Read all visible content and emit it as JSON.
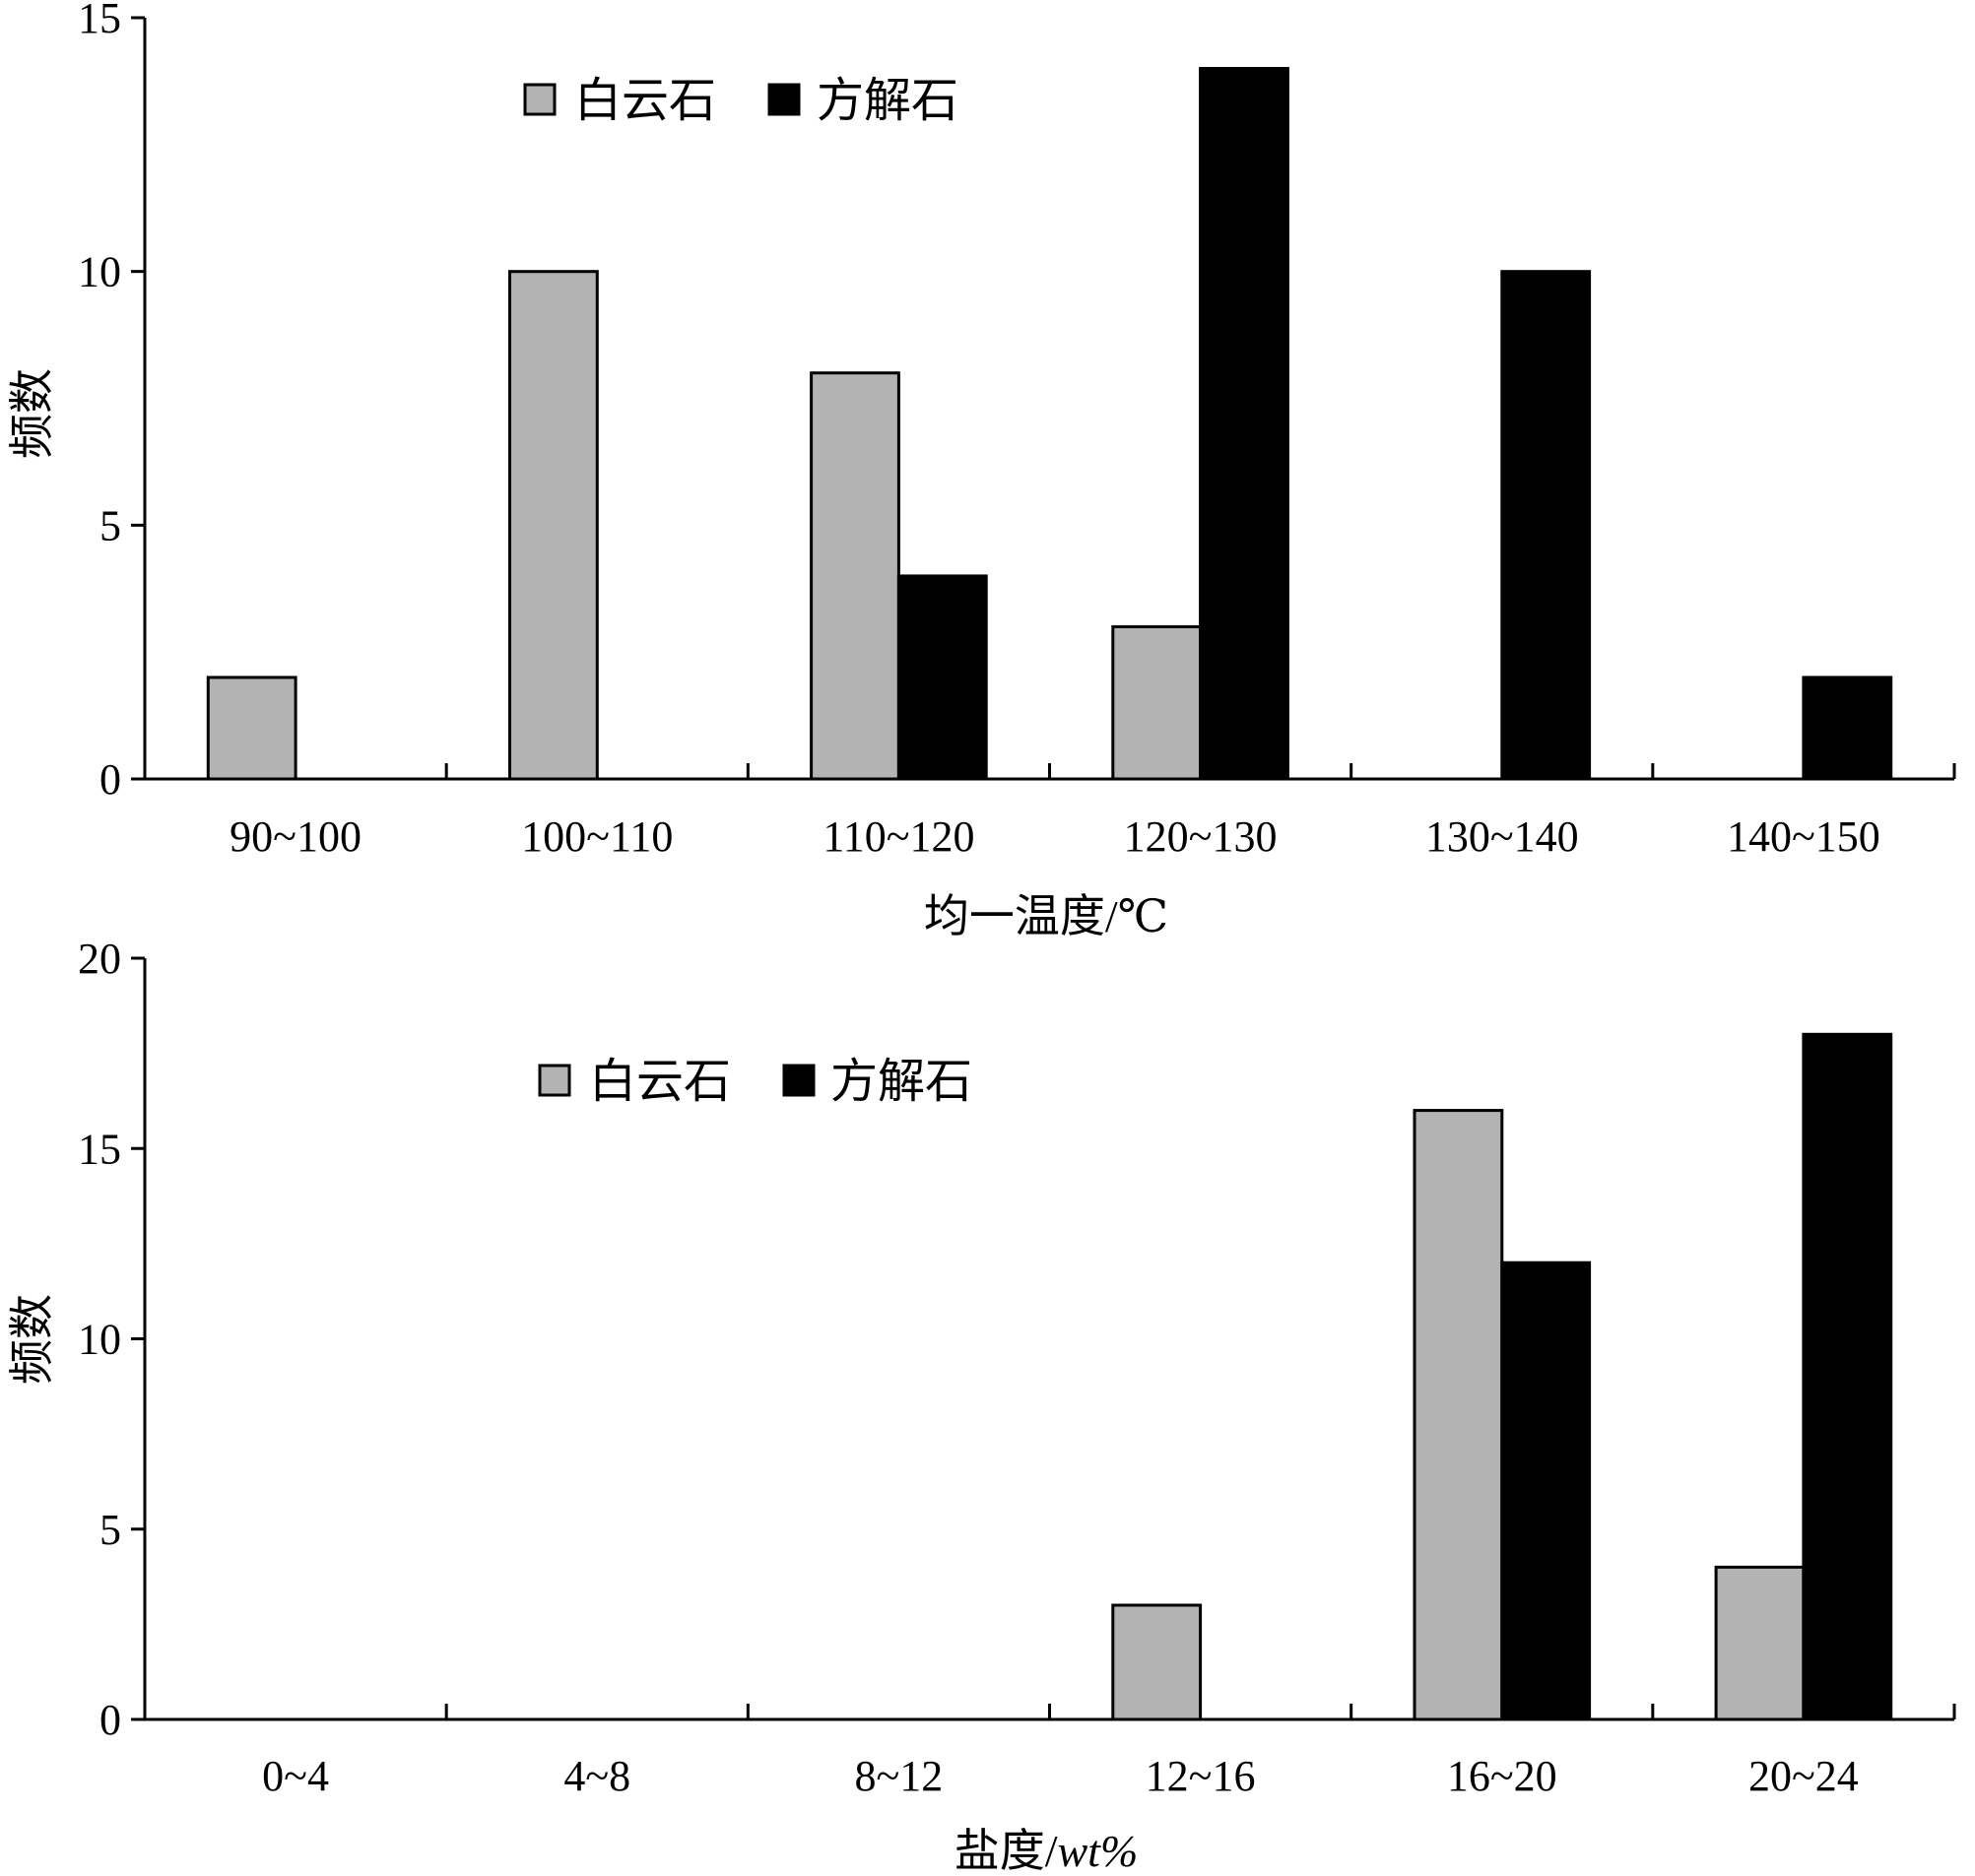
{
  "colors": {
    "dolomite": "#b3b3b3",
    "calcite": "#000000",
    "axis": "#000000"
  },
  "chart_data": [
    {
      "type": "bar",
      "categories": [
        "90~100",
        "100~110",
        "110~120",
        "120~130",
        "130~140",
        "140~150"
      ],
      "series": [
        {
          "name": "白云石",
          "values": [
            2,
            10,
            8,
            3,
            0,
            0
          ]
        },
        {
          "name": "方解石",
          "values": [
            0,
            0,
            4,
            14,
            10,
            2
          ]
        }
      ],
      "xlabel": "均一温度/℃",
      "ylabel": "频数",
      "ylim": [
        0,
        15
      ],
      "yticks": [
        "0",
        "5",
        "10",
        "15"
      ],
      "grid": false,
      "legend_position": "top-center"
    },
    {
      "type": "bar",
      "categories": [
        "0~4",
        "4~8",
        "8~12",
        "12~16",
        "16~20",
        "20~24"
      ],
      "series": [
        {
          "name": "白云石",
          "values": [
            0,
            0,
            0,
            3,
            16,
            4
          ]
        },
        {
          "name": "方解石",
          "values": [
            0,
            0,
            0,
            0,
            12,
            18
          ]
        }
      ],
      "xlabel_main": "盐度/",
      "xlabel_unit": "wt%",
      "ylabel": "频数",
      "ylim": [
        0,
        20
      ],
      "yticks": [
        "0",
        "5",
        "10",
        "15",
        "20"
      ],
      "grid": false,
      "legend_position": "top-center"
    }
  ]
}
